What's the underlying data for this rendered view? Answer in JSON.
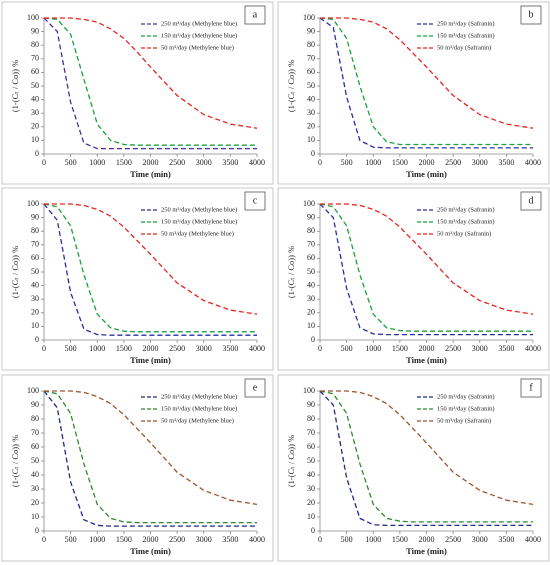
{
  "chart_data": [
    {
      "type": "line",
      "panel_label": "a",
      "y_label": "(1-(Cₜ / Co)) %",
      "x_label": "Time (min)",
      "x": [
        0,
        250,
        500,
        750,
        1000,
        1250,
        1500,
        1750,
        2000,
        2500,
        3000,
        3500,
        4000
      ],
      "xlim": [
        0,
        4000
      ],
      "xticks": [
        0,
        500,
        1000,
        1500,
        2000,
        2500,
        3000,
        3500,
        4000
      ],
      "ylim": [
        0,
        100
      ],
      "yticks": [
        0,
        10,
        20,
        30,
        40,
        50,
        60,
        70,
        80,
        90,
        100
      ],
      "series": [
        {
          "name": "250 m³/day (Methylene blue)",
          "color": "#4b2d9e",
          "values": [
            100,
            90,
            38,
            8,
            4,
            4,
            4,
            4,
            4,
            4,
            4,
            4,
            4
          ]
        },
        {
          "name": "150 m³/day (Methylene blue)",
          "color": "#19a33a",
          "values": [
            100,
            99,
            88,
            55,
            22,
            10,
            7,
            6.5,
            6.5,
            6.5,
            6.5,
            6.5,
            6.5
          ]
        },
        {
          "name": "50 m³/day (Methylene blue)",
          "color": "#e8241f",
          "values": [
            100,
            100,
            100,
            99,
            97,
            92,
            85,
            75,
            64,
            43,
            29,
            22,
            19
          ]
        }
      ]
    },
    {
      "type": "line",
      "panel_label": "b",
      "y_label": "(1-(Cₜ / Co)) %",
      "x_label": "Time (min)",
      "x": [
        0,
        250,
        500,
        750,
        1000,
        1250,
        1500,
        1750,
        2000,
        2500,
        3000,
        3500,
        4000
      ],
      "xlim": [
        0,
        4000
      ],
      "xticks": [
        0,
        500,
        1000,
        1500,
        2000,
        2500,
        3000,
        3500,
        4000
      ],
      "ylim": [
        0,
        100
      ],
      "yticks": [
        0,
        10,
        20,
        30,
        40,
        50,
        60,
        70,
        80,
        90,
        100
      ],
      "series": [
        {
          "name": "250 m³/day (Safranin)",
          "color": "#2a2e9e",
          "values": [
            100,
            93,
            42,
            10,
            5,
            4.5,
            4.5,
            4.5,
            4.5,
            4.5,
            4.5,
            4.5,
            4.5
          ]
        },
        {
          "name": "150 m³/day (Safranin)",
          "color": "#19a33a",
          "values": [
            100,
            99,
            85,
            50,
            20,
            9,
            7,
            7,
            7,
            7,
            7,
            7,
            7
          ]
        },
        {
          "name": "50 m³/day (Safranin)",
          "color": "#e8241f",
          "values": [
            100,
            100,
            100,
            99,
            97,
            92,
            84,
            74,
            64,
            43,
            29,
            22,
            19
          ]
        }
      ]
    },
    {
      "type": "line",
      "panel_label": "c",
      "y_label": "(1-(Cₜ / Co)) %",
      "x_label": "Time (min)",
      "x": [
        0,
        250,
        500,
        750,
        1000,
        1250,
        1500,
        1750,
        2000,
        2500,
        3000,
        3500,
        4000
      ],
      "xlim": [
        0,
        4000
      ],
      "xticks": [
        0,
        500,
        1000,
        1500,
        2000,
        2500,
        3000,
        3500,
        4000
      ],
      "ylim": [
        0,
        100
      ],
      "yticks": [
        0,
        10,
        20,
        30,
        40,
        50,
        60,
        70,
        80,
        90,
        100
      ],
      "series": [
        {
          "name": "250 m³/day (Methylene blue)",
          "color": "#2a2e9e",
          "values": [
            100,
            88,
            35,
            8,
            4,
            3.5,
            3.5,
            3.5,
            3.5,
            3.5,
            3.5,
            3.5,
            3.5
          ]
        },
        {
          "name": "150 m³/day (Methylene blue)",
          "color": "#19a33a",
          "values": [
            100,
            98,
            84,
            48,
            19,
            9,
            6.5,
            6,
            6,
            6,
            6,
            6,
            6
          ]
        },
        {
          "name": "50 m³/day (Methylene blue)",
          "color": "#e8241f",
          "values": [
            100,
            100,
            100,
            99,
            96,
            91,
            83,
            73,
            63,
            42,
            29,
            22,
            19
          ]
        }
      ]
    },
    {
      "type": "line",
      "panel_label": "d",
      "y_label": "(1-(Cₜ / Co)) %",
      "x_label": "Time (min)",
      "x": [
        0,
        250,
        500,
        750,
        1000,
        1250,
        1500,
        1750,
        2000,
        2500,
        3000,
        3500,
        4000
      ],
      "xlim": [
        0,
        4000
      ],
      "xticks": [
        0,
        500,
        1000,
        1500,
        2000,
        2500,
        3000,
        3500,
        4000
      ],
      "ylim": [
        0,
        100
      ],
      "yticks": [
        0,
        10,
        20,
        30,
        40,
        50,
        60,
        70,
        80,
        90,
        100
      ],
      "series": [
        {
          "name": "250 m³/day (Safranin)",
          "color": "#2a2e9e",
          "values": [
            100,
            90,
            38,
            9,
            4.5,
            4,
            4,
            4,
            4,
            4,
            4,
            4,
            4
          ]
        },
        {
          "name": "150 m³/day (Safranin)",
          "color": "#19a33a",
          "values": [
            100,
            98,
            84,
            48,
            19,
            9,
            7,
            6.5,
            6.5,
            6.5,
            6.5,
            6.5,
            6.5
          ]
        },
        {
          "name": "50 m³/day (Safranin)",
          "color": "#e8241f",
          "values": [
            100,
            100,
            100,
            99,
            96,
            91,
            83,
            73,
            63,
            42,
            29,
            22,
            19
          ]
        }
      ]
    },
    {
      "type": "line",
      "panel_label": "e",
      "y_label": "(1-(Cₜ / Co)) %",
      "x_label": "Time (min)",
      "x": [
        0,
        250,
        500,
        750,
        1000,
        1250,
        1500,
        1750,
        2000,
        2500,
        3000,
        3500,
        4000
      ],
      "xlim": [
        0,
        4000
      ],
      "xticks": [
        0,
        500,
        1000,
        1500,
        2000,
        2500,
        3000,
        3500,
        4000
      ],
      "ylim": [
        0,
        100
      ],
      "yticks": [
        0,
        10,
        20,
        30,
        40,
        50,
        60,
        70,
        80,
        90,
        100
      ],
      "series": [
        {
          "name": "250 m³/day (Methylene blue)",
          "color": "#1f2a86",
          "values": [
            100,
            88,
            35,
            8,
            4,
            3.5,
            3.5,
            3.5,
            3.5,
            3.5,
            3.5,
            3.5,
            3.5
          ]
        },
        {
          "name": "150 m³/day (Methylene blue)",
          "color": "#2f8a2f",
          "values": [
            100,
            98,
            84,
            48,
            19,
            9,
            6.5,
            6,
            6,
            6,
            6,
            6,
            6
          ]
        },
        {
          "name": "50 m³/day (Methylene blue)",
          "color": "#a0522d",
          "values": [
            100,
            100,
            100,
            99,
            96,
            91,
            83,
            73,
            63,
            42,
            29,
            22,
            19
          ]
        }
      ]
    },
    {
      "type": "line",
      "panel_label": "f",
      "y_label": "(1-(Cₜ / Co)) %",
      "x_label": "Time (min)",
      "x": [
        0,
        250,
        500,
        750,
        1000,
        1250,
        1500,
        1750,
        2000,
        2500,
        3000,
        3500,
        4000
      ],
      "xlim": [
        0,
        4000
      ],
      "xticks": [
        0,
        500,
        1000,
        1500,
        2000,
        2500,
        3000,
        3500,
        4000
      ],
      "ylim": [
        0,
        100
      ],
      "yticks": [
        0,
        10,
        20,
        30,
        40,
        50,
        60,
        70,
        80,
        90,
        100
      ],
      "series": [
        {
          "name": "250 m³/day (Safranin)",
          "color": "#1f2a86",
          "values": [
            100,
            90,
            38,
            9,
            4.5,
            4,
            4,
            4,
            4,
            4,
            4,
            4,
            4
          ]
        },
        {
          "name": "150 m³/day (Safranin)",
          "color": "#2f8a2f",
          "values": [
            100,
            98,
            84,
            48,
            19,
            9,
            7,
            6.5,
            6.5,
            6.5,
            6.5,
            6.5,
            6.5
          ]
        },
        {
          "name": "50 m³/day (Safranin)",
          "color": "#a0522d",
          "values": [
            100,
            100,
            100,
            99,
            96,
            91,
            83,
            73,
            63,
            42,
            29,
            22,
            19
          ]
        }
      ]
    }
  ]
}
